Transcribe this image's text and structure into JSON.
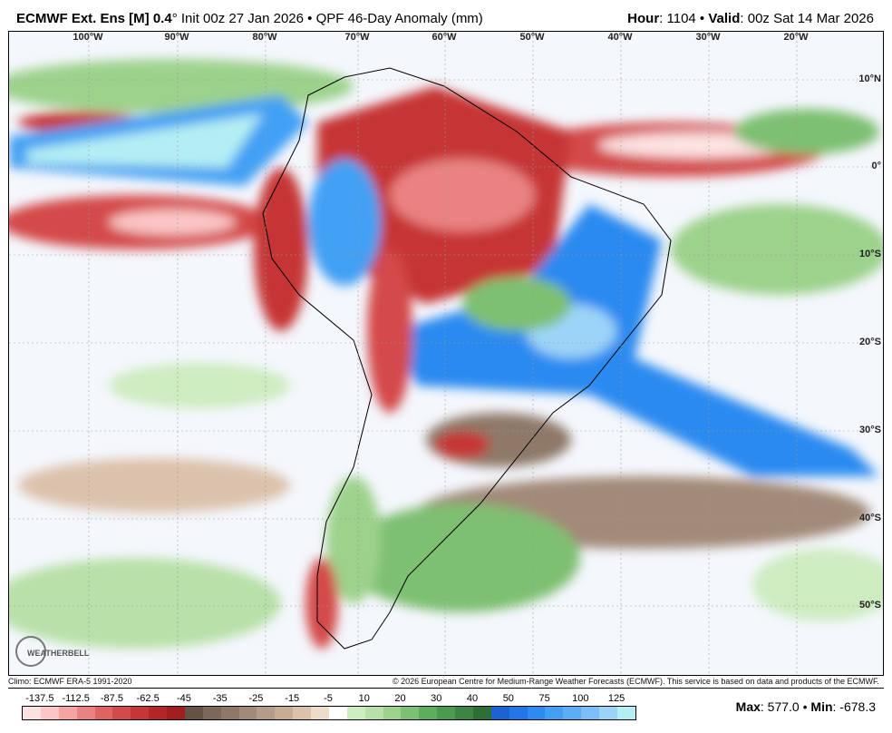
{
  "header": {
    "model": "ECMWF Ext. Ens [M]",
    "resolution": "0.4",
    "resolution_unit": "°",
    "init": "Init 00z 27 Jan 2026",
    "separator": "•",
    "product": "QPF 46-Day Anomaly (mm)",
    "hour_label": "Hour",
    "hour": "1104",
    "valid_label": "Valid",
    "valid": "00z Sat 14 Mar 2026"
  },
  "map": {
    "lon_labels": [
      "100°W",
      "90°W",
      "80°W",
      "70°W",
      "60°W",
      "50°W",
      "40°W",
      "30°W",
      "20°W"
    ],
    "lat_labels": [
      "10°N",
      "0°",
      "10°S",
      "20°S",
      "30°S",
      "40°S",
      "50°S"
    ],
    "logo_text": "WEATHERBELL"
  },
  "footer": {
    "climo": "Climo: ECMWF ERA-5 1991-2020",
    "copyright": "© 2026 European Centre for Medium-Range Weather Forecasts (ECMWF). This service is based on data and products of the ECMWF."
  },
  "colorbar": {
    "labels": [
      "-137.5",
      "-112.5",
      "-87.5",
      "-62.5",
      "-45",
      "-35",
      "-25",
      "-15",
      "-5",
      "10",
      "20",
      "30",
      "40",
      "50",
      "75",
      "100",
      "125"
    ],
    "colors": [
      "#fde2e2",
      "#fbc6c6",
      "#f5a3a3",
      "#ea8282",
      "#e06262",
      "#d44a4a",
      "#c63636",
      "#b42626",
      "#a01e1e",
      "#665244",
      "#7c6858",
      "#8e7868",
      "#a28a78",
      "#b49c8a",
      "#c8ac94",
      "#dcc2ac",
      "#eedcc8",
      "#ffffff",
      "#cdecc0",
      "#b8e0a8",
      "#9cd28c",
      "#7ec072",
      "#5cae5c",
      "#4c9a50",
      "#3e8444",
      "#2e6e38",
      "#1a64d2",
      "#2276ea",
      "#2c8af0",
      "#42a0f4",
      "#5aaef6",
      "#7cbef8",
      "#9cd4f8",
      "#b4eef4"
    ]
  },
  "stats": {
    "max_label": "Max",
    "max": "577.0",
    "min_label": "Min",
    "min": "-678.3"
  }
}
